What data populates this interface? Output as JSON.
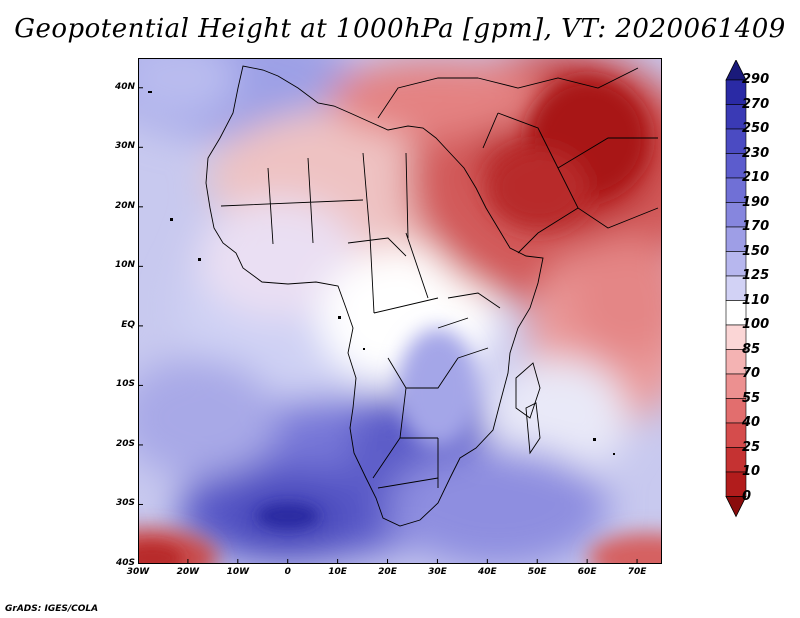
{
  "title": "Geopotential Height at 1000hPa [gpm], VT: 2020061409",
  "credit": "GrADS: IGES/COLA",
  "map": {
    "lat_labels": [
      "40N",
      "30N",
      "20N",
      "10N",
      "EQ",
      "10S",
      "20S",
      "30S",
      "40S"
    ],
    "lon_labels": [
      "30W",
      "20W",
      "10W",
      "0",
      "10E",
      "20E",
      "30E",
      "40E",
      "50E",
      "60E",
      "70E"
    ],
    "lat_range": [
      -40,
      45
    ],
    "lon_range": [
      -30,
      75
    ],
    "field": "Geopotential Height",
    "level": "1000hPa",
    "units": "gpm"
  },
  "colorbar": {
    "levels": [
      "290",
      "270",
      "250",
      "230",
      "210",
      "190",
      "170",
      "150",
      "125",
      "110",
      "100",
      "85",
      "70",
      "55",
      "40",
      "25",
      "10",
      "0"
    ],
    "colors": [
      "#1f1f8c",
      "#2a2aa5",
      "#3a3ab5",
      "#4b4bc2",
      "#5c5ccd",
      "#7070d6",
      "#8686de",
      "#9e9ee6",
      "#b7b7ee",
      "#d2d2f5",
      "#ffffff",
      "#fbd6d6",
      "#f4b3b3",
      "#ec9090",
      "#e26e6e",
      "#d54c4c",
      "#c53232",
      "#b21c1c",
      "#9c1212"
    ],
    "top_arrow_color": "#1a1a7a",
    "bottom_arrow_color": "#8a0c0c"
  },
  "colors": {
    "land_border": "#000000",
    "ocean_base": "#c4c6ee"
  }
}
